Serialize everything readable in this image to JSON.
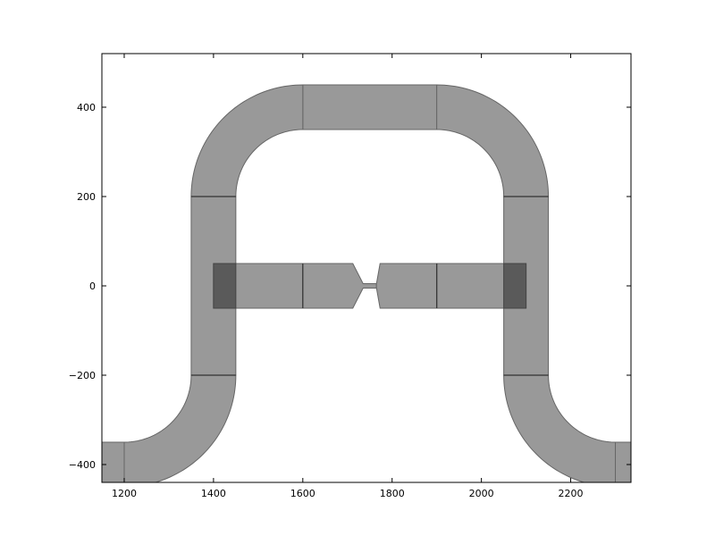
{
  "chart_data": {
    "type": "layout",
    "title": "",
    "xlabel": "",
    "ylabel": "",
    "xlim": [
      1150,
      2335
    ],
    "ylim": [
      -440,
      520
    ],
    "x_ticks": [
      1200,
      1400,
      1600,
      1800,
      2000,
      2200
    ],
    "y_ticks": [
      -400,
      -200,
      0,
      200,
      400
    ],
    "grid": false,
    "colors": {
      "waveguide_fill": "#999999",
      "waveguide_edge": "#666666",
      "overlap_fill": "#5a5a5a",
      "seam": "#333333"
    },
    "components": [
      {
        "name": "vertical-left",
        "shape": "rect",
        "x0": 1350,
        "x1": 1450,
        "y0": -200,
        "y1": 200
      },
      {
        "name": "vertical-right",
        "shape": "rect",
        "x0": 2050,
        "x1": 2150,
        "y0": -200,
        "y1": 200
      },
      {
        "name": "top-straight",
        "shape": "rect",
        "x0": 1600,
        "x1": 1900,
        "y0": 350,
        "y1": 450
      },
      {
        "name": "top-left-bend",
        "shape": "arc",
        "cx": 1600,
        "cy": 200,
        "r_in": 150,
        "r_out": 250,
        "quadrant": "top-left"
      },
      {
        "name": "top-right-bend",
        "shape": "arc",
        "cx": 1900,
        "cy": 200,
        "r_in": 150,
        "r_out": 250,
        "quadrant": "top-right"
      },
      {
        "name": "bottom-left-bend",
        "shape": "arc",
        "cx": 1200,
        "cy": -200,
        "r_in": 150,
        "r_out": 250,
        "quadrant": "bottom-right"
      },
      {
        "name": "bottom-right-bend",
        "shape": "arc",
        "cx": 2300,
        "cy": -200,
        "r_in": 150,
        "r_out": 250,
        "quadrant": "bottom-left"
      },
      {
        "name": "bottom-left-lead",
        "shape": "rect",
        "x0": 1150,
        "x1": 1200,
        "y0": -450,
        "y1": -350
      },
      {
        "name": "bottom-right-lead",
        "shape": "rect",
        "x0": 2300,
        "x1": 2335,
        "y0": -450,
        "y1": -350
      },
      {
        "name": "coupler-left",
        "shape": "rect",
        "x0": 1400,
        "x1": 1600,
        "y0": -50,
        "y1": 50
      },
      {
        "name": "taper-left",
        "shape": "polygon",
        "points": [
          [
            1600,
            50
          ],
          [
            1712,
            50
          ],
          [
            1735,
            5
          ],
          [
            1765,
            5
          ],
          [
            1765,
            -5
          ],
          [
            1735,
            -5
          ],
          [
            1712,
            -50
          ],
          [
            1600,
            -50
          ]
        ]
      },
      {
        "name": "taper-right",
        "shape": "polygon",
        "points": [
          [
            1900,
            50
          ],
          [
            1773,
            50
          ],
          [
            1765,
            5
          ],
          [
            1765,
            -5
          ],
          [
            1773,
            -50
          ],
          [
            1900,
            -50
          ]
        ]
      },
      {
        "name": "coupler-right",
        "shape": "rect",
        "x0": 1900,
        "x1": 2100,
        "y0": -50,
        "y1": 50
      }
    ],
    "overlaps": [
      {
        "name": "overlap-left",
        "x0": 1400,
        "x1": 1450,
        "y0": -50,
        "y1": 50
      },
      {
        "name": "overlap-right",
        "x0": 2050,
        "x1": 2100,
        "y0": -50,
        "y1": 50
      }
    ],
    "seams": [
      {
        "name": "seam-left-top",
        "x0": 1350,
        "x1": 1450,
        "y0": 200,
        "y1": 200
      },
      {
        "name": "seam-left-bottom",
        "x0": 1350,
        "x1": 1450,
        "y0": -200,
        "y1": -200
      },
      {
        "name": "seam-right-top",
        "x0": 2050,
        "x1": 2150,
        "y0": 200,
        "y1": 200
      },
      {
        "name": "seam-right-bottom",
        "x0": 2050,
        "x1": 2150,
        "y0": -200,
        "y1": -200
      },
      {
        "name": "seam-coupler-left",
        "x0": 1600,
        "x1": 1600,
        "y0": -50,
        "y1": 50
      },
      {
        "name": "seam-coupler-right",
        "x0": 1900,
        "x1": 1900,
        "y0": -50,
        "y1": 50
      }
    ]
  }
}
